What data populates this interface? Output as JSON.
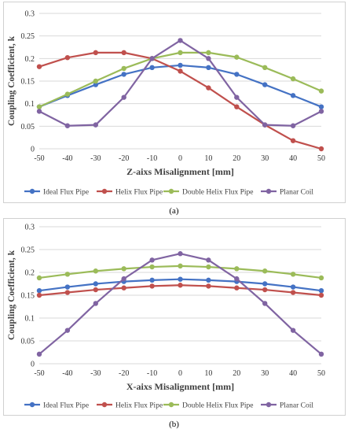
{
  "chart_data": [
    {
      "type": "line",
      "xlabel": "Z-aixs Misalignment [mm]",
      "ylabel": "Coupling Coefficient, k",
      "x": [
        -50,
        -40,
        -30,
        -20,
        -10,
        0,
        10,
        20,
        30,
        40,
        50
      ],
      "ylim": [
        0,
        0.3
      ],
      "yticks": [
        "0",
        "0.05",
        "0.1",
        "0.15",
        "0.2",
        "0.25",
        "0.3"
      ],
      "grid": "horizontal",
      "legend_position": "bottom",
      "series": [
        {
          "name": "Ideal Flux Pipe",
          "color": "#4472c4",
          "values": [
            0.093,
            0.118,
            0.142,
            0.165,
            0.18,
            0.185,
            0.18,
            0.165,
            0.142,
            0.118,
            0.093
          ]
        },
        {
          "name": "Helix Flux Pipe",
          "color": "#c0504d",
          "values": [
            0.182,
            0.202,
            0.213,
            0.213,
            0.2,
            0.172,
            0.135,
            0.093,
            0.053,
            0.018,
            0.0
          ]
        },
        {
          "name": "Double Helix Flux Pipe",
          "color": "#9bbb59",
          "values": [
            0.093,
            0.121,
            0.15,
            0.178,
            0.2,
            0.213,
            0.213,
            0.203,
            0.18,
            0.155,
            0.128
          ]
        },
        {
          "name": "Planar Coil",
          "color": "#8064a2",
          "values": [
            0.083,
            0.051,
            0.053,
            0.114,
            0.2,
            0.24,
            0.2,
            0.114,
            0.053,
            0.051,
            0.083
          ]
        }
      ]
    },
    {
      "type": "line",
      "xlabel": "X-aixs Misalignment [mm]",
      "ylabel": "Coupling Coefficient, k",
      "x": [
        -50,
        -40,
        -30,
        -20,
        -10,
        0,
        10,
        20,
        30,
        40,
        50
      ],
      "ylim": [
        0,
        0.3
      ],
      "yticks": [
        "0",
        "0.05",
        "0.1",
        "0.15",
        "0.2",
        "0.25",
        "0.3"
      ],
      "grid": "horizontal",
      "legend_position": "bottom",
      "series": [
        {
          "name": "Ideal Flux Pipe",
          "color": "#4472c4",
          "values": [
            0.16,
            0.168,
            0.175,
            0.18,
            0.183,
            0.185,
            0.183,
            0.18,
            0.175,
            0.168,
            0.16
          ]
        },
        {
          "name": "Helix Flux Pipe",
          "color": "#c0504d",
          "values": [
            0.15,
            0.156,
            0.162,
            0.166,
            0.17,
            0.172,
            0.17,
            0.166,
            0.162,
            0.156,
            0.15
          ]
        },
        {
          "name": "Double Helix Flux Pipe",
          "color": "#9bbb59",
          "values": [
            0.188,
            0.196,
            0.203,
            0.208,
            0.212,
            0.214,
            0.212,
            0.208,
            0.203,
            0.196,
            0.188
          ]
        },
        {
          "name": "Planar Coil",
          "color": "#8064a2",
          "values": [
            0.021,
            0.073,
            0.132,
            0.186,
            0.227,
            0.241,
            0.227,
            0.186,
            0.132,
            0.073,
            0.021
          ]
        }
      ]
    }
  ],
  "captions": [
    "(a)",
    "(b)"
  ]
}
